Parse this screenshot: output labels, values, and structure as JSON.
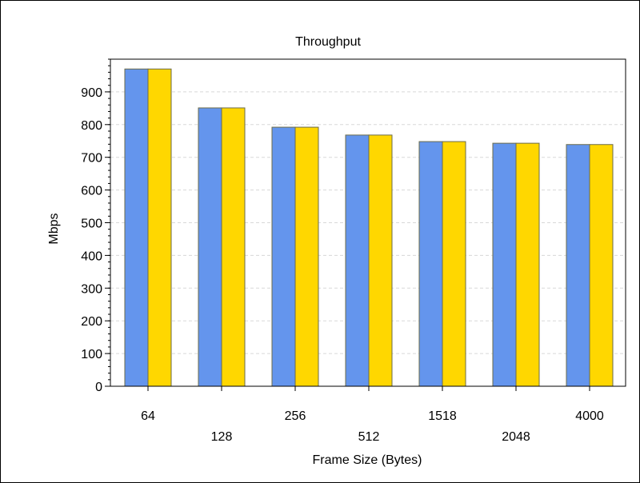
{
  "chart_data": {
    "type": "bar",
    "title": "Throughput",
    "xlabel": "Frame Size (Bytes)",
    "ylabel": "Mbps",
    "categories": [
      "64",
      "128",
      "256",
      "512",
      "1518",
      "2048",
      "4000"
    ],
    "series": [
      {
        "values": [
          970,
          851,
          792,
          768,
          748,
          743,
          739
        ]
      },
      {
        "values": [
          970,
          851,
          792,
          768,
          748,
          743,
          739
        ]
      }
    ],
    "ylim": [
      0,
      1000
    ],
    "yticks": [
      0,
      100,
      200,
      300,
      400,
      500,
      600,
      700,
      800,
      900
    ],
    "grid": true,
    "legend": "none",
    "colors": [
      "#6495ED",
      "#FFD700"
    ]
  }
}
